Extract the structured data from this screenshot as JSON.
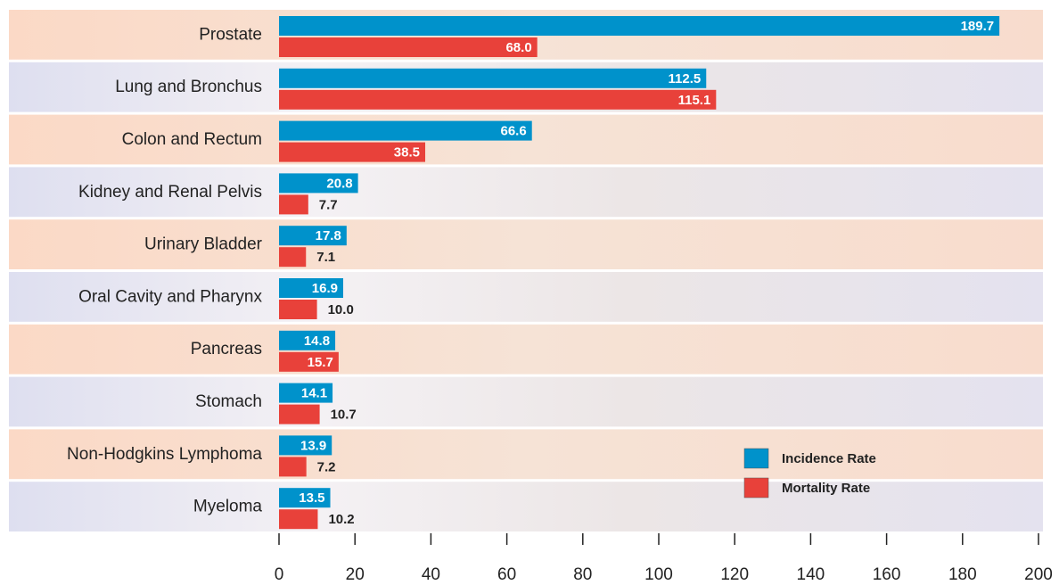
{
  "chart_data": {
    "type": "bar",
    "orientation": "horizontal",
    "categories": [
      "Prostate",
      "Lung and Bronchus",
      "Colon and Rectum",
      "Kidney and Renal Pelvis",
      "Urinary Bladder",
      "Oral Cavity and Pharynx",
      "Pancreas",
      "Stomach",
      "Non-Hodgkins Lymphoma",
      "Myeloma"
    ],
    "series": [
      {
        "name": "Incidence Rate",
        "color": "#0092cb",
        "values": [
          189.7,
          112.5,
          66.6,
          20.8,
          17.8,
          16.9,
          14.8,
          14.1,
          13.9,
          13.5
        ],
        "value_labels": [
          "189.7",
          "112.5",
          "66.6",
          "20.8",
          "17.8",
          "16.9",
          "14.8",
          "14.1",
          "13.9",
          "13.5"
        ]
      },
      {
        "name": "Mortality Rate",
        "color": "#e8413a",
        "values": [
          68.0,
          115.1,
          38.5,
          7.7,
          7.1,
          10.0,
          15.7,
          10.7,
          7.2,
          10.2
        ],
        "value_labels": [
          "68.0",
          "115.1",
          "38.5",
          "7.7",
          "7.1",
          "10.0",
          "15.7",
          "10.7",
          "7.2",
          "10.2"
        ]
      }
    ],
    "xlim": [
      0,
      200
    ],
    "xticks": [
      0,
      20,
      40,
      60,
      80,
      100,
      120,
      140,
      160,
      180,
      200
    ],
    "legend": "lower right"
  }
}
